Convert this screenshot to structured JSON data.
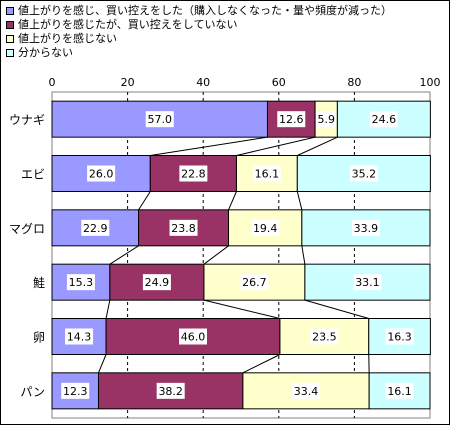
{
  "chart_data": {
    "type": "bar",
    "stacked": true,
    "orientation": "horizontal",
    "categories": [
      "ウナギ",
      "エビ",
      "マグロ",
      "鮭",
      "卵",
      "パン"
    ],
    "series": [
      {
        "name": "値上がりを感じ、買い控えをした（購入しなくなった・量や頻度が減った）",
        "color": "#9999ff",
        "values": [
          57.0,
          26.0,
          22.9,
          15.3,
          14.3,
          12.3
        ]
      },
      {
        "name": "値上がりを感じたが、買い控えをしていない",
        "color": "#993366",
        "values": [
          12.6,
          22.8,
          23.8,
          24.9,
          46.0,
          38.2
        ]
      },
      {
        "name": "値上がりを感じない",
        "color": "#ffffcc",
        "values": [
          5.9,
          16.1,
          19.4,
          26.7,
          23.5,
          33.4
        ]
      },
      {
        "name": "分からない",
        "color": "#ccffff",
        "values": [
          24.6,
          35.2,
          33.9,
          33.1,
          16.3,
          16.1
        ]
      }
    ],
    "xlim": [
      0,
      100
    ],
    "xticks": [
      0,
      20,
      40,
      60,
      80,
      100
    ],
    "grid": "vertical dashed",
    "legend_position": "top-left",
    "series_lines": true
  }
}
